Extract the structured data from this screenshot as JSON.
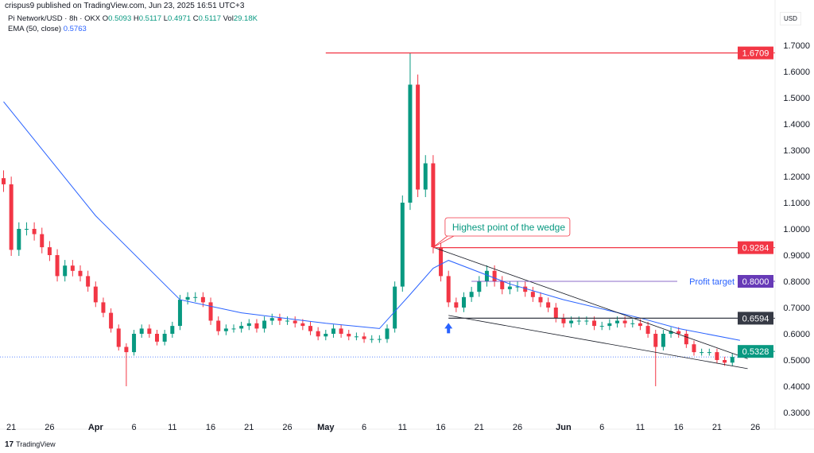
{
  "header": {
    "published": "crispus9 published on TradingView.com, Jun 23, 2025 16:51 UTC+3",
    "symbol": "Pi Network/USD · 8h · OKX",
    "o_label": "O",
    "o": "0.5093",
    "h_label": "H",
    "h": "0.5117",
    "l_label": "L",
    "l": "0.4971",
    "c_label": "C",
    "c": "0.5117",
    "vol_label": "Vol",
    "vol": "29.18K",
    "ema_label": "EMA (50, close)",
    "ema_value": "0.5763"
  },
  "currency": "USD",
  "footer": {
    "brand": "TradingView",
    "logo_icon": "tradingview-logo-icon"
  },
  "colors": {
    "up": "#089981",
    "down": "#f23645",
    "ema": "#2962ff",
    "resistance": "#f23645",
    "profit": "#673ab7",
    "support": "#363a45",
    "current": "#089981"
  },
  "chart_data": {
    "type": "candlestick",
    "interval": "8h",
    "ylim": [
      0.28,
      1.76
    ],
    "y_ticks": [
      "1.7000",
      "1.6000",
      "1.5000",
      "1.4000",
      "1.3000",
      "1.2000",
      "1.1000",
      "1.0000",
      "0.9000",
      "0.8000",
      "0.7000",
      "0.6000",
      "0.5000",
      "0.4000",
      "0.3000"
    ],
    "x_ticks": [
      {
        "date": "2025-03-21",
        "label": "21"
      },
      {
        "date": "2025-03-26",
        "label": "26"
      },
      {
        "date": "2025-04-01",
        "label": "Apr",
        "bold": true
      },
      {
        "date": "2025-04-06",
        "label": "6"
      },
      {
        "date": "2025-04-11",
        "label": "11"
      },
      {
        "date": "2025-04-16",
        "label": "16"
      },
      {
        "date": "2025-04-21",
        "label": "21"
      },
      {
        "date": "2025-04-26",
        "label": "26"
      },
      {
        "date": "2025-05-01",
        "label": "May",
        "bold": true
      },
      {
        "date": "2025-05-06",
        "label": "6"
      },
      {
        "date": "2025-05-11",
        "label": "11"
      },
      {
        "date": "2025-05-16",
        "label": "16"
      },
      {
        "date": "2025-05-21",
        "label": "21"
      },
      {
        "date": "2025-05-26",
        "label": "26"
      },
      {
        "date": "2025-06-01",
        "label": "Jun",
        "bold": true
      },
      {
        "date": "2025-06-06",
        "label": "6"
      },
      {
        "date": "2025-06-11",
        "label": "11"
      },
      {
        "date": "2025-06-16",
        "label": "16"
      },
      {
        "date": "2025-06-21",
        "label": "21"
      },
      {
        "date": "2025-06-26",
        "label": "26"
      }
    ],
    "start_date": "2025-03-20",
    "daily_close": [
      1.17,
      0.92,
      1.0,
      1.0,
      0.98,
      0.93,
      0.9,
      0.82,
      0.86,
      0.84,
      0.82,
      0.78,
      0.72,
      0.68,
      0.62,
      0.55,
      0.53,
      0.6,
      0.62,
      0.6,
      0.57,
      0.6,
      0.63,
      0.73,
      0.74,
      0.74,
      0.72,
      0.65,
      0.61,
      0.62,
      0.62,
      0.63,
      0.64,
      0.62,
      0.65,
      0.66,
      0.65,
      0.65,
      0.64,
      0.63,
      0.61,
      0.59,
      0.6,
      0.62,
      0.6,
      0.59,
      0.59,
      0.58,
      0.58,
      0.58,
      0.62,
      0.78,
      1.1,
      1.55,
      1.15,
      1.25,
      0.93,
      0.82,
      0.72,
      0.7,
      0.74,
      0.76,
      0.8,
      0.84,
      0.8,
      0.77,
      0.78,
      0.78,
      0.76,
      0.74,
      0.72,
      0.7,
      0.66,
      0.64,
      0.65,
      0.65,
      0.65,
      0.63,
      0.63,
      0.64,
      0.65,
      0.64,
      0.64,
      0.63,
      0.6,
      0.55,
      0.6,
      0.61,
      0.6,
      0.56,
      0.53,
      0.53,
      0.53,
      0.5,
      0.49,
      0.5117
    ],
    "extreme_wicks": [
      {
        "date": "2025-04-05",
        "low": 0.4
      },
      {
        "date": "2025-05-12",
        "high": 1.6709
      },
      {
        "date": "2025-06-13",
        "low": 0.4
      }
    ],
    "ema_series": {
      "name": "EMA (50, close)",
      "points": [
        [
          "2025-03-20",
          1.485
        ],
        [
          "2025-04-01",
          1.05
        ],
        [
          "2025-04-12",
          0.73
        ],
        [
          "2025-04-20",
          0.68
        ],
        [
          "2025-05-01",
          0.64
        ],
        [
          "2025-05-08",
          0.62
        ],
        [
          "2025-05-12",
          0.75
        ],
        [
          "2025-05-15",
          0.85
        ],
        [
          "2025-05-17",
          0.88
        ],
        [
          "2025-05-25",
          0.79
        ],
        [
          "2025-06-01",
          0.73
        ],
        [
          "2025-06-11",
          0.66
        ],
        [
          "2025-06-16",
          0.62
        ],
        [
          "2025-06-24",
          0.575
        ]
      ]
    },
    "levels": [
      {
        "value": 1.6709,
        "label": "1.6709",
        "color": "#f23645",
        "from": "2025-05-01"
      },
      {
        "value": 0.9284,
        "label": "0.9284",
        "color": "#f23645",
        "from": "2025-05-15"
      },
      {
        "value": 0.8,
        "label": "0.8000",
        "color": "#673ab7",
        "from": "2025-05-20",
        "text": "Profit target"
      },
      {
        "value": 0.6594,
        "label": "0.6594",
        "color": "#363a45",
        "from": "2025-05-17"
      },
      {
        "value": 0.5328,
        "label": "0.5328",
        "color": "#089981",
        "from": "2025-06-24"
      }
    ],
    "current_price": 0.5117,
    "wedge": {
      "upper": [
        [
          "2025-05-15",
          0.93
        ],
        [
          "2025-06-25",
          0.505
        ]
      ],
      "lower": [
        [
          "2025-05-17",
          0.67
        ],
        [
          "2025-06-25",
          0.467
        ]
      ]
    },
    "annotation": {
      "text": "Highest point of the wedge",
      "date": "2025-05-15",
      "value": 0.93
    },
    "arrow": {
      "date": "2025-05-17",
      "value": 0.62,
      "icon": "arrow-up-icon"
    }
  }
}
